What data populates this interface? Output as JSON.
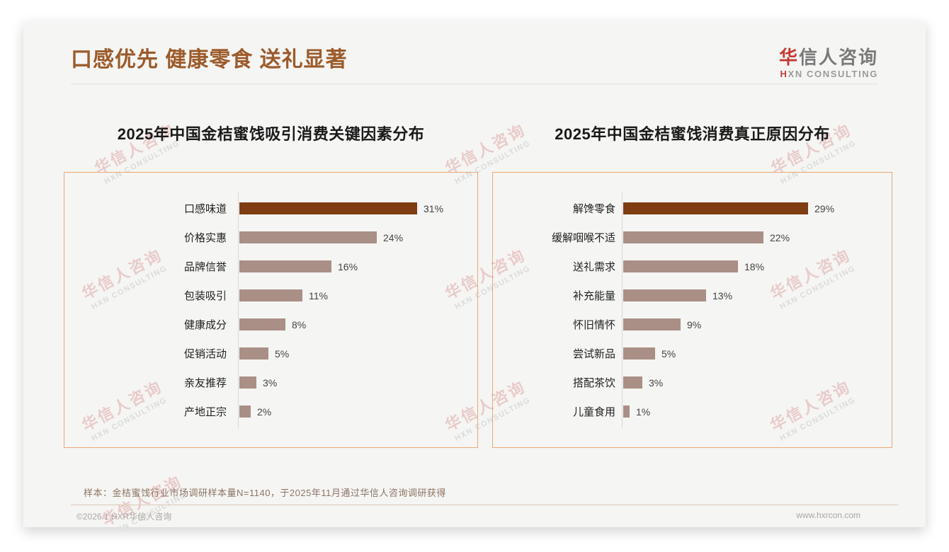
{
  "header": {
    "title": "口感优先 健康零食 送礼显著",
    "logo": {
      "accent_cn": "华",
      "rest_cn": "信人咨询",
      "accent_en": "H",
      "rest_en": "XN CONSULTING"
    }
  },
  "watermark": {
    "line1": "华信人咨询",
    "line2": "HXN CONSULTING"
  },
  "chart_data": [
    {
      "type": "bar",
      "orientation": "horizontal",
      "title": "2025年中国金桔蜜饯吸引消费关键因素分布",
      "categories": [
        "口感味道",
        "价格实惠",
        "品牌信誉",
        "包装吸引",
        "健康成分",
        "促销活动",
        "亲友推荐",
        "产地正宗"
      ],
      "values": [
        31,
        24,
        16,
        11,
        8,
        5,
        3,
        2
      ],
      "unit": "%",
      "value_suffix": "%",
      "xlim": [
        0,
        35
      ],
      "grid": false,
      "legend": "none",
      "highlight_color": "#7f3d11",
      "bar_color": "#a98f85"
    },
    {
      "type": "bar",
      "orientation": "horizontal",
      "title": "2025年中国金桔蜜饯消费真正原因分布",
      "categories": [
        "解馋零食",
        "缓解咽喉不适",
        "送礼需求",
        "补充能量",
        "怀旧情怀",
        "尝试新品",
        "搭配茶饮",
        "儿童食用"
      ],
      "values": [
        29,
        22,
        18,
        13,
        9,
        5,
        3,
        1
      ],
      "unit": "%",
      "value_suffix": "%",
      "xlim": [
        0,
        32
      ],
      "grid": false,
      "legend": "none",
      "highlight_color": "#7f3d11",
      "bar_color": "#a98f85"
    }
  ],
  "footnote": "样本：金桔蜜饯行业市场调研样本量N=1140，于2025年11月通过华信人咨询调研获得",
  "footer": {
    "copyright": "©2026.1 HXR华信人咨询",
    "website": "www.hxrcon.com"
  },
  "colors": {
    "title": "#9c5b2b",
    "logo_accent": "#c23a31",
    "panel_border": "#e9a877",
    "bar_highlight": "#7f3d11",
    "bar_normal": "#a98f85"
  }
}
